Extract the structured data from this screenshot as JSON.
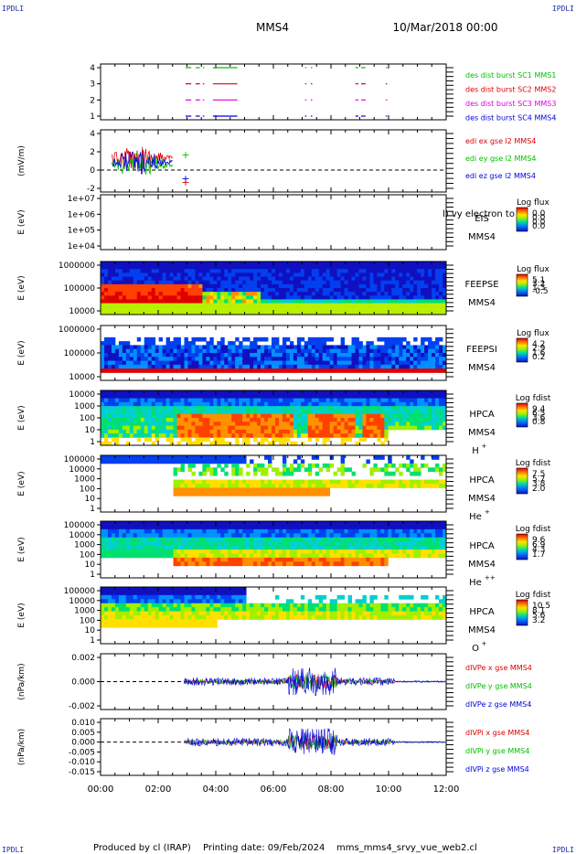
{
  "header": {
    "mission": "MMS4",
    "datetime": "10/Mar/2018 00:00",
    "corner_label": "IPDLI"
  },
  "footer": {
    "produced_by": "Produced by cl (IRAP)",
    "printing_date": "Printing date: 09/Feb/2024",
    "plot_file": "mms_mms4_srvy_vue_web2.cl"
  },
  "chart_data": [
    {
      "type": "line",
      "id": "burst",
      "yticks": [
        "4",
        "3",
        "2",
        "1"
      ],
      "ylim": [
        0.5,
        4.5
      ],
      "series": [
        {
          "name": "des dist burst SC1 MMS1",
          "color": "#00c000",
          "level": 4
        },
        {
          "name": "des dist burst SC2 MMS2",
          "color": "#e00000",
          "level": 3
        },
        {
          "name": "des dist burst SC3 MMS3",
          "color": "#e000e0",
          "level": 2
        },
        {
          "name": "des dist burst SC4 MMS4",
          "color": "#0000e0",
          "level": 1
        }
      ],
      "intervals_hours": [
        [
          2.95,
          3.15
        ],
        [
          3.3,
          3.45
        ],
        [
          3.55,
          3.6
        ],
        [
          3.9,
          4.75
        ],
        [
          7.1,
          7.15
        ],
        [
          7.3,
          7.35
        ],
        [
          8.85,
          8.95
        ],
        [
          9.05,
          9.2
        ],
        [
          9.9,
          9.95
        ]
      ]
    },
    {
      "type": "line",
      "id": "edi",
      "ylabel": "(mV/m)",
      "yticks": [
        "4",
        "2",
        "0",
        "-2"
      ],
      "ylim": [
        -3,
        5
      ],
      "series": [
        {
          "name": "edi ex gse l2 MMS4",
          "color": "#e00000"
        },
        {
          "name": "edi ey gse l2 MMS4",
          "color": "#00c000"
        },
        {
          "name": "edi ez gse l2 MMS4",
          "color": "#0000e0"
        }
      ],
      "x_range_hours": [
        0.4,
        2.5
      ]
    },
    {
      "type": "heatmap",
      "id": "eis",
      "ylabel": "E (eV)",
      "yticks": [
        "1e+07",
        "1e+06",
        "1e+05",
        "1e+04"
      ],
      "instrument": "EIS",
      "spacecraft": "MMS4",
      "overlay_text": "l) vy electron to",
      "colorbar_title": "Log flux",
      "colorbar_ticks": [
        "0.0",
        "0.0",
        "0.0",
        "0.0"
      ]
    },
    {
      "type": "heatmap",
      "id": "feepse",
      "ylabel": "E (eV)",
      "yticks": [
        "1000000",
        "100000",
        "10000"
      ],
      "instrument": "FEEPSE",
      "spacecraft": "MMS4",
      "colorbar_title": "Log flux",
      "colorbar_ticks": [
        "5.1",
        "3.2",
        "1.3",
        "-0.5"
      ]
    },
    {
      "type": "heatmap",
      "id": "feepsi",
      "ylabel": "E (eV)",
      "yticks": [
        "1000000",
        "100000",
        "10000"
      ],
      "instrument": "FEEPSI",
      "spacecraft": "MMS4",
      "colorbar_title": "Log flux",
      "colorbar_ticks": [
        "4.2",
        "2.9",
        "1.6",
        "0.2"
      ]
    },
    {
      "type": "heatmap",
      "id": "hpca_h",
      "ylabel": "E (eV)",
      "yticks": [
        "10000",
        "1000",
        "100",
        "10",
        "1"
      ],
      "instrument": "HPCA",
      "spacecraft": "MMS4",
      "species": "H",
      "species_sup": "+",
      "colorbar_title": "Log fdist",
      "colorbar_ticks": [
        "9.4",
        "6.5",
        "3.6",
        "0.8"
      ]
    },
    {
      "type": "heatmap",
      "id": "hpca_he",
      "ylabel": "E (eV)",
      "yticks": [
        "100000",
        "10000",
        "1000",
        "100",
        "10",
        "1"
      ],
      "instrument": "HPCA",
      "spacecraft": "MMS4",
      "species": "He",
      "species_sup": "+",
      "colorbar_title": "Log fdist",
      "colorbar_ticks": [
        "7.5",
        "5.7",
        "3.8",
        "2.0"
      ]
    },
    {
      "type": "heatmap",
      "id": "hpca_he2",
      "ylabel": "E (eV)",
      "yticks": [
        "100000",
        "10000",
        "1000",
        "100",
        "10",
        "1"
      ],
      "instrument": "HPCA",
      "spacecraft": "MMS4",
      "species": "He",
      "species_sup": "++",
      "colorbar_title": "Log fdist",
      "colorbar_ticks": [
        "9.6",
        "6.9",
        "4.3",
        "1.7"
      ]
    },
    {
      "type": "heatmap",
      "id": "hpca_o",
      "ylabel": "E (eV)",
      "yticks": [
        "100000",
        "10000",
        "1000",
        "100",
        "10",
        "1"
      ],
      "instrument": "HPCA",
      "spacecraft": "MMS4",
      "species": "O",
      "species_sup": "+",
      "colorbar_title": "Log fdist",
      "colorbar_ticks": [
        "10.5",
        "8.1",
        "5.6",
        "3.2"
      ]
    },
    {
      "type": "line",
      "id": "divpe",
      "ylabel": "(nPa/km)",
      "yticks": [
        "0.002",
        "0.000",
        "-0.002"
      ],
      "ylim": [
        -0.003,
        0.003
      ],
      "series": [
        {
          "name": "dIVPe x gse MMS4",
          "color": "#e00000"
        },
        {
          "name": "dIVPe y gse MMS4",
          "color": "#00c000"
        },
        {
          "name": "dIVPe z gse MMS4",
          "color": "#0000e0"
        }
      ]
    },
    {
      "type": "line",
      "id": "divpi",
      "ylabel": "(nPa/km)",
      "yticks": [
        "0.010",
        "0.005",
        "0.000",
        "-0.005",
        "-0.010",
        "-0.015"
      ],
      "ylim": [
        -0.017,
        0.012
      ],
      "series": [
        {
          "name": "dIVPi x gse MMS4",
          "color": "#e00000"
        },
        {
          "name": "dIVPi y gse MMS4",
          "color": "#00c000"
        },
        {
          "name": "dIVPi z gse MMS4",
          "color": "#0000e0"
        }
      ]
    }
  ],
  "x_axis": {
    "ticks": [
      "00:00",
      "02:00",
      "04:00",
      "06:00",
      "08:00",
      "10:00",
      "12:00"
    ],
    "range_hours": [
      0,
      12
    ]
  }
}
